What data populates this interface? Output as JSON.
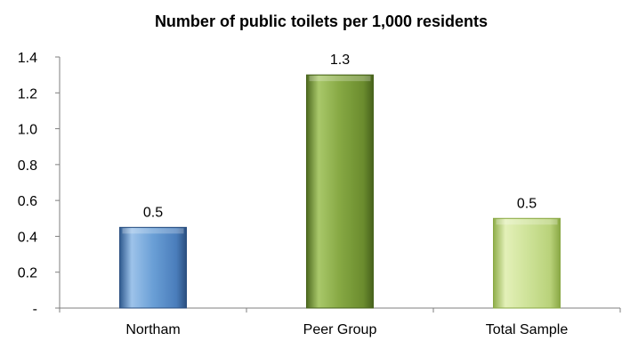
{
  "chart_data": {
    "type": "bar",
    "title": "Number of public toilets per 1,000 residents",
    "categories": [
      "Northam",
      "Peer Group",
      "Total Sample"
    ],
    "values": [
      0.45,
      1.3,
      0.5
    ],
    "data_labels": [
      "0.5",
      "1.3",
      "0.5"
    ],
    "bar_colors": [
      "#4f81bd",
      "#77933c",
      "#c3d69b"
    ],
    "ylim": [
      0,
      1.4
    ],
    "yticks": [
      0,
      0.2,
      0.4,
      0.6,
      0.8,
      1.0,
      1.2,
      1.4
    ],
    "ytick_labels": [
      "-",
      "0.2",
      "0.4",
      "0.6",
      "0.8",
      "1.0",
      "1.2",
      "1.4"
    ],
    "grid": false,
    "legend": "none"
  }
}
